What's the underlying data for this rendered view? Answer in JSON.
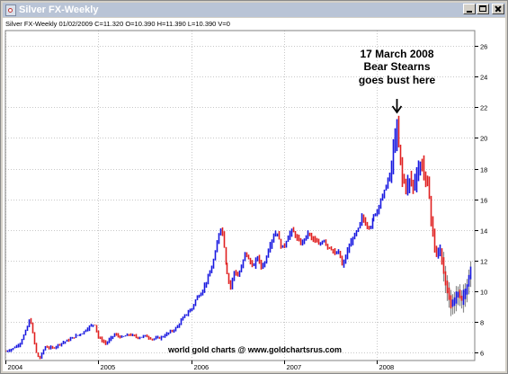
{
  "window": {
    "title": "Silver FX-Weekly",
    "icon": "chart-window-icon",
    "buttons": [
      "minimize",
      "maximize",
      "close"
    ]
  },
  "header_info": "Silver FX-Weekly   01/02/2009  C=11.320  O=10.390  H=11.390  L=10.390  V=0",
  "annotation": {
    "lines": [
      "17 March 2008",
      "Bear Stearns",
      "goes bust here"
    ],
    "x": 2008.21
  },
  "credit": "world gold charts @ www.goldchartsrus.com",
  "colors": {
    "up": "#1818e0",
    "down": "#e02020",
    "unconnected": "#8c8c8c",
    "grid": "#c8c8c8"
  },
  "chart_data": {
    "type": "line",
    "title": "Silver FX-Weekly",
    "xlabel": "",
    "ylabel": "",
    "x_ticks": [
      "2004",
      "2005",
      "2006",
      "2007",
      "2008"
    ],
    "y_ticks": [
      6,
      8,
      10,
      12,
      14,
      16,
      18,
      20,
      22,
      24,
      26
    ],
    "xlim": [
      2004.0,
      2009.05
    ],
    "ylim": [
      5.5,
      27
    ],
    "y_axis": "right",
    "grid": true,
    "series": [
      {
        "values": [
          [
            2004.0,
            6.1
          ],
          [
            2004.08,
            6.3
          ],
          [
            2004.15,
            6.6
          ],
          [
            2004.22,
            7.5
          ],
          [
            2004.26,
            8.3
          ],
          [
            2004.29,
            7.2
          ],
          [
            2004.33,
            5.9
          ],
          [
            2004.36,
            5.6
          ],
          [
            2004.42,
            6.4
          ],
          [
            2004.5,
            6.3
          ],
          [
            2004.58,
            6.6
          ],
          [
            2004.66,
            6.8
          ],
          [
            2004.75,
            7.1
          ],
          [
            2004.83,
            7.3
          ],
          [
            2004.9,
            7.7
          ],
          [
            2004.96,
            7.9
          ],
          [
            2005.0,
            7.0
          ],
          [
            2005.08,
            6.6
          ],
          [
            2005.17,
            7.2
          ],
          [
            2005.25,
            7.0
          ],
          [
            2005.33,
            7.2
          ],
          [
            2005.42,
            7.0
          ],
          [
            2005.5,
            7.1
          ],
          [
            2005.58,
            6.9
          ],
          [
            2005.67,
            7.0
          ],
          [
            2005.75,
            7.3
          ],
          [
            2005.83,
            7.6
          ],
          [
            2005.92,
            8.4
          ],
          [
            2006.0,
            8.9
          ],
          [
            2006.05,
            9.6
          ],
          [
            2006.1,
            9.9
          ],
          [
            2006.15,
            10.6
          ],
          [
            2006.2,
            11.3
          ],
          [
            2006.25,
            12.5
          ],
          [
            2006.3,
            14.2
          ],
          [
            2006.33,
            13.8
          ],
          [
            2006.37,
            11.6
          ],
          [
            2006.42,
            10.2
          ],
          [
            2006.46,
            11.3
          ],
          [
            2006.5,
            11.0
          ],
          [
            2006.54,
            11.6
          ],
          [
            2006.58,
            12.6
          ],
          [
            2006.62,
            12.0
          ],
          [
            2006.67,
            11.6
          ],
          [
            2006.71,
            12.3
          ],
          [
            2006.75,
            11.6
          ],
          [
            2006.79,
            11.9
          ],
          [
            2006.83,
            12.8
          ],
          [
            2006.88,
            13.6
          ],
          [
            2006.92,
            13.9
          ],
          [
            2006.96,
            12.9
          ],
          [
            2007.0,
            13.0
          ],
          [
            2007.04,
            13.6
          ],
          [
            2007.08,
            14.0
          ],
          [
            2007.12,
            13.6
          ],
          [
            2007.17,
            13.1
          ],
          [
            2007.21,
            13.4
          ],
          [
            2007.25,
            13.8
          ],
          [
            2007.29,
            13.5
          ],
          [
            2007.33,
            13.3
          ],
          [
            2007.37,
            13.0
          ],
          [
            2007.42,
            13.4
          ],
          [
            2007.46,
            12.9
          ],
          [
            2007.5,
            12.8
          ],
          [
            2007.54,
            12.4
          ],
          [
            2007.58,
            12.6
          ],
          [
            2007.62,
            11.6
          ],
          [
            2007.67,
            12.6
          ],
          [
            2007.71,
            13.2
          ],
          [
            2007.75,
            13.7
          ],
          [
            2007.79,
            14.1
          ],
          [
            2007.83,
            14.9
          ],
          [
            2007.87,
            14.3
          ],
          [
            2007.92,
            14.2
          ],
          [
            2007.96,
            14.9
          ],
          [
            2008.0,
            15.3
          ],
          [
            2008.04,
            16.0
          ],
          [
            2008.08,
            16.6
          ],
          [
            2008.12,
            17.3
          ],
          [
            2008.15,
            18.0
          ],
          [
            2008.18,
            19.6
          ],
          [
            2008.21,
            20.7
          ],
          [
            2008.24,
            19.0
          ],
          [
            2008.27,
            17.4
          ],
          [
            2008.31,
            16.8
          ],
          [
            2008.35,
            17.3
          ],
          [
            2008.39,
            16.9
          ],
          [
            2008.43,
            17.7
          ],
          [
            2008.47,
            18.4
          ],
          [
            2008.51,
            17.6
          ],
          [
            2008.55,
            16.6
          ],
          [
            2008.59,
            14.0
          ],
          [
            2008.63,
            12.2
          ],
          [
            2008.67,
            12.8
          ],
          [
            2008.71,
            11.3
          ],
          [
            2008.75,
            9.9
          ],
          [
            2008.79,
            9.2
          ],
          [
            2008.83,
            9.6
          ],
          [
            2008.87,
            9.8
          ],
          [
            2008.91,
            9.5
          ],
          [
            2008.95,
            10.2
          ],
          [
            2008.99,
            11.0
          ],
          [
            2009.01,
            11.3
          ]
        ]
      }
    ]
  }
}
